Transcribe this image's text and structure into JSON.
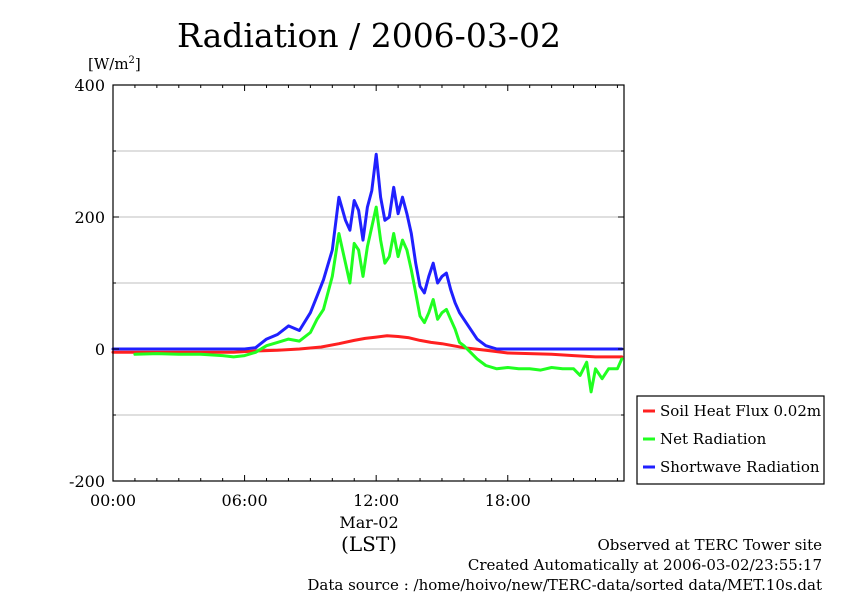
{
  "chart_data": {
    "type": "line",
    "title": "Radiation / 2006-03-02",
    "ylabel": "[W/m",
    "ylabel_sup": "2",
    "ylabel_close": "]",
    "xlabel": "(LST)",
    "x_date_label": "Mar-02",
    "ylim": [
      -200,
      400
    ],
    "xlim": [
      0,
      23.3
    ],
    "yticks": [
      {
        "value": 400,
        "label": "400"
      },
      {
        "value": 200,
        "label": "200"
      },
      {
        "value": 0,
        "label": "0"
      },
      {
        "value": -200,
        "label": "-200"
      }
    ],
    "xticks": [
      {
        "value": 0,
        "label": "00:00"
      },
      {
        "value": 6,
        "label": "06:00"
      },
      {
        "value": 12,
        "label": "12:00"
      },
      {
        "value": 18,
        "label": "18:00"
      }
    ],
    "grid": true,
    "legend_position": "bottom-right",
    "series": [
      {
        "name": "Soil Heat Flux 0.02m",
        "color": "#ff2020",
        "x": [
          0,
          2,
          4,
          5.5,
          6.5,
          7.5,
          8.5,
          9.5,
          10.3,
          11,
          11.5,
          12,
          12.5,
          13,
          13.5,
          14,
          14.5,
          15,
          15.5,
          16,
          16.5,
          17,
          17.5,
          18,
          19,
          20,
          21,
          22,
          23.2
        ],
        "values": [
          -5,
          -5,
          -5,
          -5,
          -3,
          -2,
          0,
          3,
          8,
          13,
          16,
          18,
          20,
          19,
          17,
          13,
          10,
          8,
          5,
          2,
          0,
          -2,
          -4,
          -6,
          -7,
          -8,
          -10,
          -12,
          -12
        ]
      },
      {
        "name": "Net Radiation",
        "color": "#20ff20",
        "x": [
          1,
          2,
          3,
          4,
          5,
          5.5,
          6,
          6.5,
          7,
          7.5,
          8,
          8.5,
          9,
          9.3,
          9.6,
          10,
          10.3,
          10.6,
          10.8,
          11,
          11.2,
          11.4,
          11.6,
          11.8,
          12,
          12.2,
          12.4,
          12.6,
          12.8,
          13,
          13.2,
          13.4,
          13.6,
          13.8,
          14,
          14.2,
          14.4,
          14.6,
          14.8,
          15,
          15.2,
          15.4,
          15.6,
          15.8,
          16,
          16.3,
          16.6,
          17,
          17.5,
          18,
          18.5,
          19,
          19.5,
          20,
          20.5,
          21,
          21.3,
          21.6,
          21.8,
          22,
          22.3,
          22.6,
          23,
          23.2
        ],
        "values": [
          -8,
          -7,
          -8,
          -8,
          -10,
          -12,
          -10,
          -5,
          5,
          10,
          15,
          12,
          25,
          45,
          60,
          110,
          175,
          130,
          100,
          160,
          150,
          110,
          155,
          185,
          215,
          165,
          130,
          140,
          175,
          140,
          165,
          150,
          120,
          85,
          50,
          40,
          55,
          75,
          45,
          55,
          60,
          45,
          30,
          10,
          5,
          -5,
          -15,
          -25,
          -30,
          -28,
          -30,
          -30,
          -32,
          -28,
          -30,
          -30,
          -40,
          -20,
          -65,
          -30,
          -45,
          -30,
          -30,
          -15
        ]
      },
      {
        "name": "Shortwave Radiation",
        "color": "#2020ff",
        "x": [
          0,
          2,
          4,
          5.5,
          6,
          6.5,
          7,
          7.5,
          8,
          8.5,
          9,
          9.3,
          9.6,
          10,
          10.3,
          10.6,
          10.8,
          11,
          11.2,
          11.4,
          11.6,
          11.8,
          12,
          12.2,
          12.4,
          12.6,
          12.8,
          13,
          13.2,
          13.4,
          13.6,
          13.8,
          14,
          14.2,
          14.4,
          14.6,
          14.8,
          15,
          15.2,
          15.4,
          15.6,
          15.8,
          16,
          16.3,
          16.6,
          17,
          17.5,
          18,
          19,
          20,
          21,
          22,
          23.2
        ],
        "values": [
          0,
          0,
          0,
          0,
          0,
          2,
          15,
          22,
          35,
          28,
          55,
          80,
          105,
          150,
          230,
          195,
          180,
          225,
          210,
          165,
          215,
          240,
          295,
          230,
          195,
          200,
          245,
          205,
          230,
          205,
          175,
          130,
          95,
          85,
          110,
          130,
          100,
          110,
          115,
          90,
          70,
          55,
          45,
          30,
          15,
          5,
          0,
          0,
          0,
          0,
          0,
          0,
          0
        ]
      }
    ]
  },
  "footer": {
    "line1": "Observed at TERC Tower site",
    "line2": "Created Automatically at 2006-03-02/23:55:17",
    "line3": "Data source : /home/hoivo/new/TERC-data/sorted  data/MET.10s.dat"
  }
}
